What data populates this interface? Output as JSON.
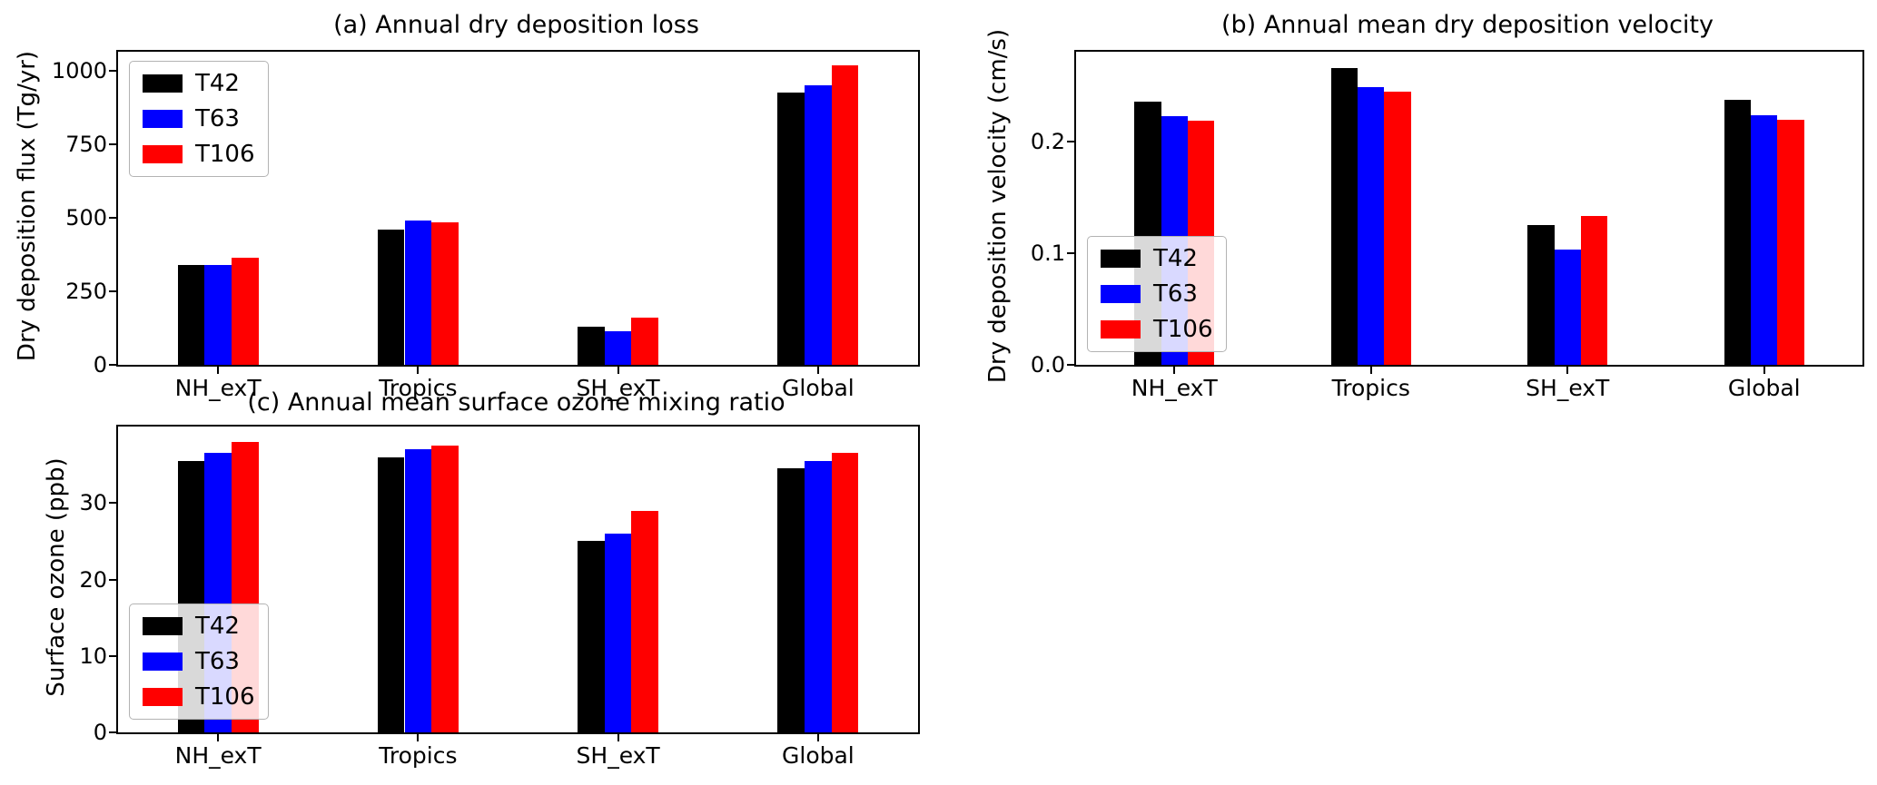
{
  "figure": {
    "background": "#ffffff",
    "series_colors": {
      "T42": "#000000",
      "T63": "#0000ff",
      "T106": "#ff0000"
    }
  },
  "chart_data": [
    {
      "type": "bar",
      "title": "(a) Annual dry deposition loss",
      "ylabel": "Dry deposition flux (Tg/yr)",
      "xlabel": "",
      "categories": [
        "NH_exT",
        "Tropics",
        "SH_exT",
        "Global"
      ],
      "series": [
        {
          "name": "T42",
          "color": "#000000",
          "values": [
            340,
            460,
            130,
            925
          ]
        },
        {
          "name": "T63",
          "color": "#0000ff",
          "values": [
            340,
            490,
            115,
            950
          ]
        },
        {
          "name": "T106",
          "color": "#ff0000",
          "values": [
            365,
            485,
            160,
            1020
          ]
        }
      ],
      "ylim": [
        0,
        1065
      ],
      "yticks": [
        0,
        250,
        500,
        750,
        1000
      ],
      "ytick_labels": [
        "0",
        "250",
        "500",
        "750",
        "1000"
      ],
      "grid": false,
      "legend_position": "upper-left"
    },
    {
      "type": "bar",
      "title": "(b) Annual mean dry deposition velocity",
      "ylabel": "Dry deposition velocity (cm/s)",
      "xlabel": "",
      "categories": [
        "NH_exT",
        "Tropics",
        "SH_exT",
        "Global"
      ],
      "series": [
        {
          "name": "T42",
          "color": "#000000",
          "values": [
            0.235,
            0.265,
            0.125,
            0.237
          ]
        },
        {
          "name": "T63",
          "color": "#0000ff",
          "values": [
            0.222,
            0.248,
            0.103,
            0.223
          ]
        },
        {
          "name": "T106",
          "color": "#ff0000",
          "values": [
            0.218,
            0.244,
            0.133,
            0.219
          ]
        }
      ],
      "ylim": [
        0,
        0.28
      ],
      "yticks": [
        0,
        0.1,
        0.2
      ],
      "ytick_labels": [
        "0.0",
        "0.1",
        "0.2"
      ],
      "grid": false,
      "legend_position": "lower-left"
    },
    {
      "type": "bar",
      "title": "(c) Annual mean surface ozone mixing ratio",
      "ylabel": "Surface ozone (ppb)",
      "xlabel": "",
      "categories": [
        "NH_exT",
        "Tropics",
        "SH_exT",
        "Global"
      ],
      "series": [
        {
          "name": "T42",
          "color": "#000000",
          "values": [
            35.5,
            36.0,
            25.0,
            34.5
          ]
        },
        {
          "name": "T63",
          "color": "#0000ff",
          "values": [
            36.5,
            37.0,
            26.0,
            35.5
          ]
        },
        {
          "name": "T106",
          "color": "#ff0000",
          "values": [
            38.0,
            37.5,
            29.0,
            36.5
          ]
        }
      ],
      "ylim": [
        0,
        40
      ],
      "yticks": [
        0,
        10,
        20,
        30
      ],
      "ytick_labels": [
        "0",
        "10",
        "20",
        "30"
      ],
      "grid": false,
      "legend_position": "lower-left"
    }
  ]
}
